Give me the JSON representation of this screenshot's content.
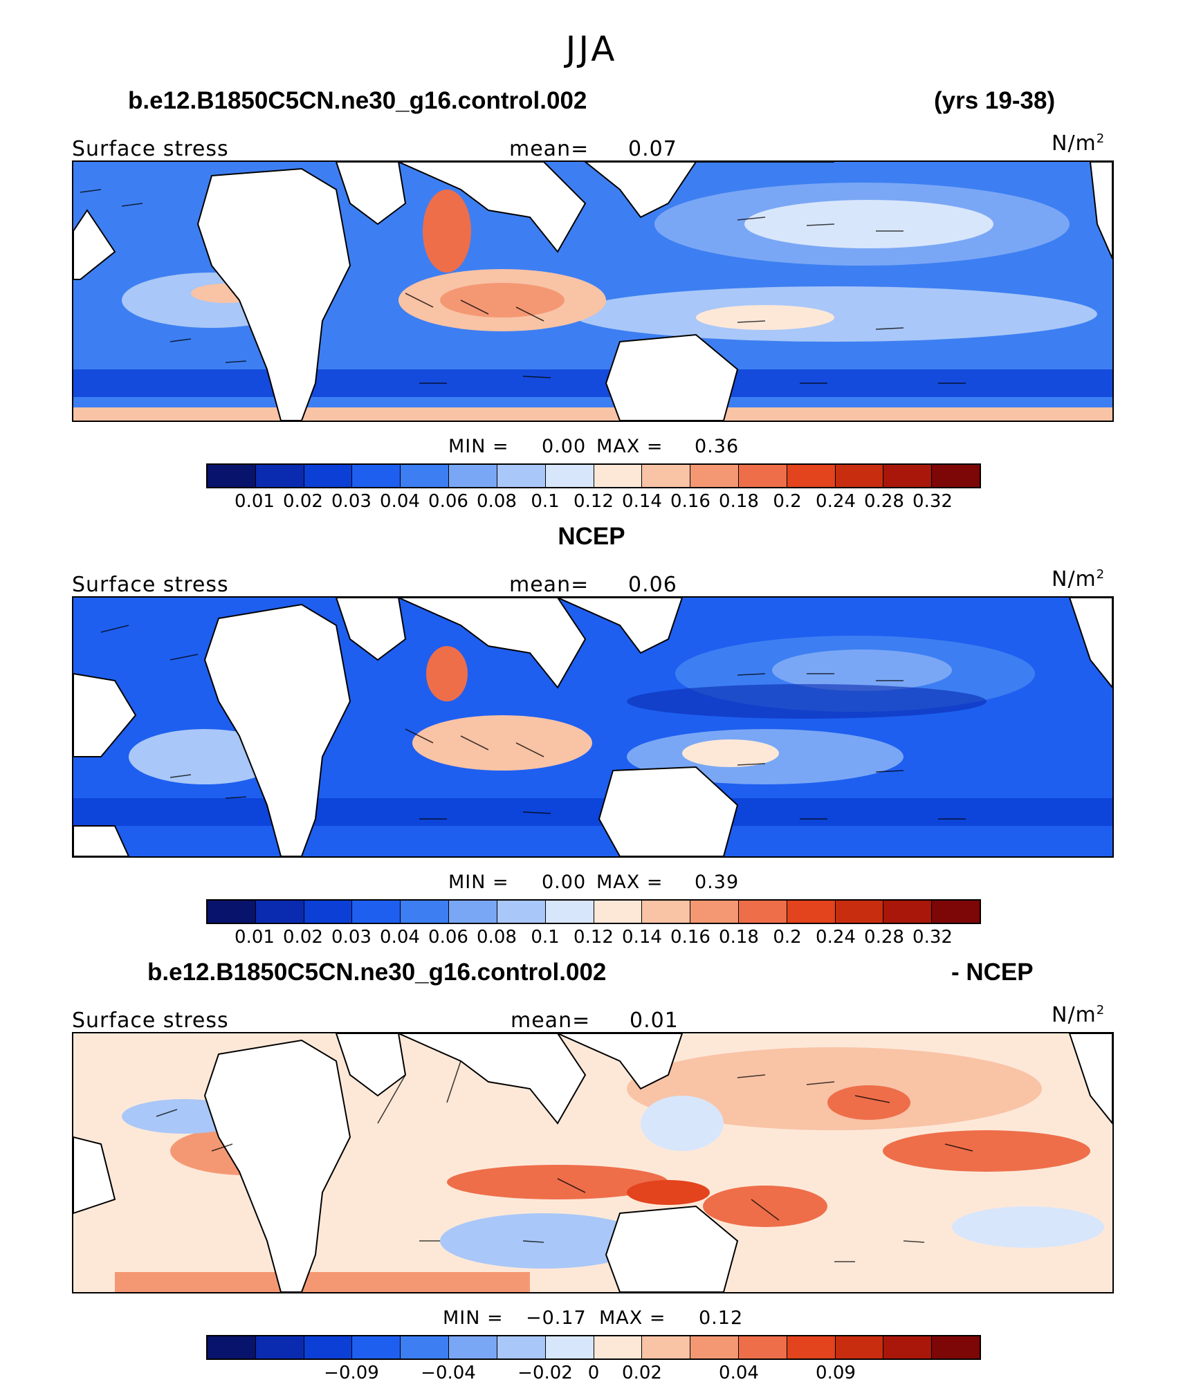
{
  "season": "JJA",
  "colors": {
    "palette_16": [
      "#08136b",
      "#0a2bb0",
      "#0b3fd6",
      "#1e5ff0",
      "#3d7ff2",
      "#7aa7f5",
      "#a9c7f8",
      "#d8e6fb",
      "#fde8d8",
      "#f9c3a6",
      "#f49873",
      "#ee6e4a",
      "#e3431d",
      "#c92d10",
      "#a8170a",
      "#7d0606"
    ],
    "land": "#ffffff",
    "coast": "#000000"
  },
  "panels": [
    {
      "heading_left": "b.e12.B1850C5CN.ne30_g16.control.002",
      "heading_right": "(yrs 19-38)",
      "field_label": "Surface stress",
      "mean_label": "mean=",
      "mean_value": "0.07",
      "units_base": "N/m",
      "units_exp": "2",
      "min_label": "MIN =",
      "min_value": "0.00",
      "max_label": "MAX =",
      "max_value": "0.36",
      "ticks": [
        "0.01",
        "0.02",
        "0.03",
        "0.04",
        "0.06",
        "0.08",
        "0.1",
        "0.12",
        "0.14",
        "0.16",
        "0.18",
        "0.2",
        "0.24",
        "0.28",
        "0.32"
      ]
    },
    {
      "heading_left": "NCEP",
      "heading_right": "",
      "field_label": "Surface stress",
      "mean_label": "mean=",
      "mean_value": "0.06",
      "units_base": "N/m",
      "units_exp": "2",
      "min_label": "MIN =",
      "min_value": "0.00",
      "max_label": "MAX =",
      "max_value": "0.39",
      "ticks": [
        "0.01",
        "0.02",
        "0.03",
        "0.04",
        "0.06",
        "0.08",
        "0.1",
        "0.12",
        "0.14",
        "0.16",
        "0.18",
        "0.2",
        "0.24",
        "0.28",
        "0.32"
      ]
    },
    {
      "heading_left": "b.e12.B1850C5CN.ne30_g16.control.002",
      "heading_right": "- NCEP",
      "field_label": "Surface stress",
      "mean_label": "mean=",
      "mean_value": "0.01",
      "units_base": "N/m",
      "units_exp": "2",
      "min_label": "MIN =",
      "min_value": "−0.17",
      "max_label": "MAX =",
      "max_value": "0.12",
      "ticks": [
        "−0.09",
        "−0.04",
        "−0.02",
        "0",
        "0.02",
        "0.04",
        "0.09"
      ]
    }
  ]
}
